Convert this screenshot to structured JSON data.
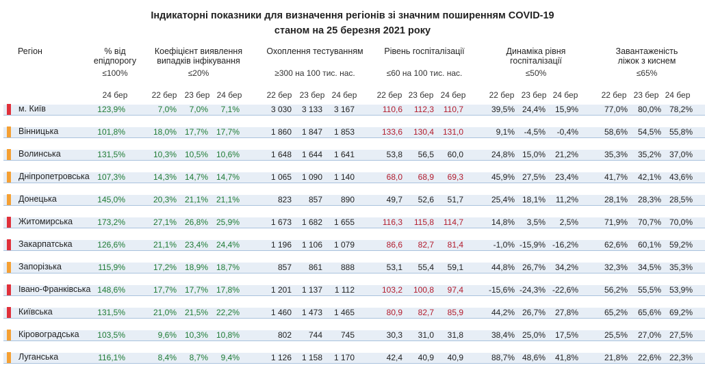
{
  "title_line1": "Індикаторні показники для визначення регіонів зі значним поширенням COVID-19",
  "title_line2": "станом на 25 березня 2021 року",
  "headers": {
    "region": "Регіон",
    "epi_line1": "% від",
    "epi_line2": "епідпорогу",
    "epi_sub": "≤100%",
    "coef_line1": "Коефіцієнт виявлення",
    "coef_line2": "випадків інфікування",
    "coef_sub": "≤20%",
    "test_line1": "Охоплення тестуванням",
    "test_sub": "≥300 на 100 тис. нас.",
    "hosp_line1": "Рівень госпіталізації",
    "hosp_sub": "≤60 на 100 тис. нас.",
    "dyn_line1": "Динаміка рівня",
    "dyn_line2": "госпіталізації",
    "dyn_sub": "≤50%",
    "beds_line1": "Завантаженість",
    "beds_line2": "ліжок з киснем",
    "beds_sub": "≤65%"
  },
  "dates": {
    "epi": "24 бер",
    "d22": "22 бер",
    "d23": "23 бер",
    "d24": "24 бер"
  },
  "colors": {
    "red_marker": "#e0303a",
    "orange_marker": "#f5a033",
    "green_text": "#1e7b34",
    "red_text": "#b21b2c"
  },
  "rows": [
    {
      "name": "м. Київ",
      "marker": "red",
      "epi": "123,9%",
      "coef": [
        "7,0%",
        "7,0%",
        "7,1%"
      ],
      "test": [
        "3 030",
        "3 133",
        "3 167"
      ],
      "hosp": [
        "110,6",
        "112,3",
        "110,7"
      ],
      "hosp_red": true,
      "dyn": [
        "39,5%",
        "24,4%",
        "15,9%"
      ],
      "beds": [
        "77,0%",
        "80,0%",
        "78,2%"
      ]
    },
    {
      "name": "Вінницька",
      "marker": "orange",
      "epi": "101,8%",
      "coef": [
        "18,0%",
        "17,7%",
        "17,7%"
      ],
      "test": [
        "1 860",
        "1 847",
        "1 853"
      ],
      "hosp": [
        "133,6",
        "130,4",
        "131,0"
      ],
      "hosp_red": true,
      "dyn": [
        "9,1%",
        "-4,5%",
        "-0,4%"
      ],
      "beds": [
        "58,6%",
        "54,5%",
        "55,8%"
      ]
    },
    {
      "name": "Волинська",
      "marker": "orange",
      "epi": "131,5%",
      "coef": [
        "10,3%",
        "10,5%",
        "10,6%"
      ],
      "test": [
        "1 648",
        "1 644",
        "1 641"
      ],
      "hosp": [
        "53,8",
        "56,5",
        "60,0"
      ],
      "hosp_red": false,
      "dyn": [
        "24,8%",
        "15,0%",
        "21,2%"
      ],
      "beds": [
        "35,3%",
        "35,2%",
        "37,0%"
      ]
    },
    {
      "name": "Дніпропетровська",
      "marker": "orange",
      "epi": "107,3%",
      "coef": [
        "14,3%",
        "14,7%",
        "14,7%"
      ],
      "test": [
        "1 065",
        "1 090",
        "1 140"
      ],
      "hosp": [
        "68,0",
        "68,9",
        "69,3"
      ],
      "hosp_red": true,
      "dyn": [
        "45,9%",
        "27,5%",
        "23,4%"
      ],
      "beds": [
        "41,7%",
        "42,1%",
        "43,6%"
      ]
    },
    {
      "name": "Донецька",
      "marker": "orange",
      "epi": "145,0%",
      "coef": [
        "20,3%",
        "21,1%",
        "21,1%"
      ],
      "test": [
        "823",
        "857",
        "890"
      ],
      "hosp": [
        "49,7",
        "52,6",
        "51,7"
      ],
      "hosp_red": false,
      "dyn": [
        "25,4%",
        "18,1%",
        "11,2%"
      ],
      "beds": [
        "28,1%",
        "28,3%",
        "28,5%"
      ]
    },
    {
      "name": "Житомирська",
      "marker": "red",
      "epi": "173,2%",
      "coef": [
        "27,1%",
        "26,8%",
        "25,9%"
      ],
      "test": [
        "1 673",
        "1 682",
        "1 655"
      ],
      "hosp": [
        "116,3",
        "115,8",
        "114,7"
      ],
      "hosp_red": true,
      "dyn": [
        "14,8%",
        "3,5%",
        "2,5%"
      ],
      "beds": [
        "71,9%",
        "70,7%",
        "70,0%"
      ]
    },
    {
      "name": "Закарпатська",
      "marker": "red",
      "epi": "126,6%",
      "coef": [
        "21,1%",
        "23,4%",
        "24,4%"
      ],
      "test": [
        "1 196",
        "1 106",
        "1 079"
      ],
      "hosp": [
        "86,6",
        "82,7",
        "81,4"
      ],
      "hosp_red": true,
      "dyn": [
        "-1,0%",
        "-15,9%",
        "-16,2%"
      ],
      "beds": [
        "62,6%",
        "60,1%",
        "59,2%"
      ]
    },
    {
      "name": "Запорізька",
      "marker": "orange",
      "epi": "115,9%",
      "coef": [
        "17,2%",
        "18,9%",
        "18,7%"
      ],
      "test": [
        "857",
        "861",
        "888"
      ],
      "hosp": [
        "53,1",
        "55,4",
        "59,1"
      ],
      "hosp_red": false,
      "dyn": [
        "44,8%",
        "26,7%",
        "34,2%"
      ],
      "beds": [
        "32,3%",
        "34,5%",
        "35,3%"
      ]
    },
    {
      "name": "Івано-Франківська",
      "marker": "red",
      "epi": "148,6%",
      "coef": [
        "17,7%",
        "17,7%",
        "17,8%"
      ],
      "test": [
        "1 201",
        "1 137",
        "1 112"
      ],
      "hosp": [
        "103,2",
        "100,8",
        "97,4"
      ],
      "hosp_red": true,
      "dyn": [
        "-15,6%",
        "-24,3%",
        "-22,6%"
      ],
      "beds": [
        "56,2%",
        "55,5%",
        "53,9%"
      ]
    },
    {
      "name": "Київська",
      "marker": "red",
      "epi": "131,5%",
      "coef": [
        "21,0%",
        "21,5%",
        "22,2%"
      ],
      "test": [
        "1 460",
        "1 473",
        "1 465"
      ],
      "hosp": [
        "80,9",
        "82,7",
        "85,9"
      ],
      "hosp_red": true,
      "dyn": [
        "44,2%",
        "26,7%",
        "27,8%"
      ],
      "beds": [
        "65,2%",
        "65,6%",
        "69,2%"
      ]
    },
    {
      "name": "Кіровоградська",
      "marker": "orange",
      "epi": "103,5%",
      "coef": [
        "9,6%",
        "10,3%",
        "10,8%"
      ],
      "test": [
        "802",
        "744",
        "745"
      ],
      "hosp": [
        "30,3",
        "31,0",
        "31,8"
      ],
      "hosp_red": false,
      "dyn": [
        "38,4%",
        "25,0%",
        "17,5%"
      ],
      "beds": [
        "25,5%",
        "27,0%",
        "27,5%"
      ]
    },
    {
      "name": "Луганська",
      "marker": "orange",
      "epi": "116,1%",
      "coef": [
        "8,4%",
        "8,7%",
        "9,4%"
      ],
      "test": [
        "1 126",
        "1 158",
        "1 170"
      ],
      "hosp": [
        "42,4",
        "40,9",
        "40,9"
      ],
      "hosp_red": false,
      "dyn": [
        "88,7%",
        "48,6%",
        "41,8%"
      ],
      "beds": [
        "21,8%",
        "22,6%",
        "22,3%"
      ]
    }
  ]
}
